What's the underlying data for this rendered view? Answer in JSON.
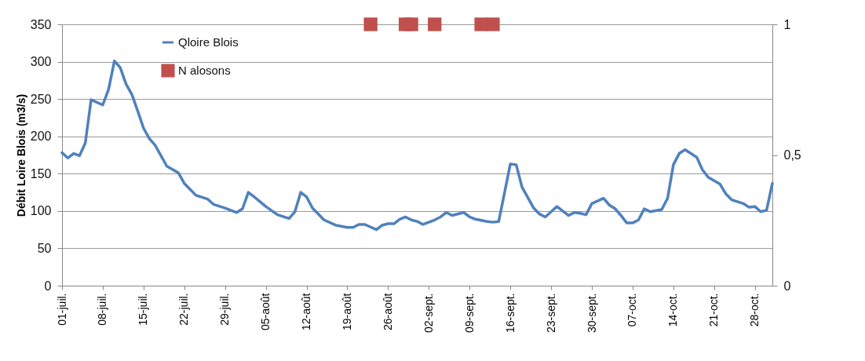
{
  "chart_data": {
    "type": "line",
    "ylabel": "Débit Loire Blois (m3/s)",
    "ylim": [
      0,
      350
    ],
    "yticks": [
      0,
      50,
      100,
      150,
      200,
      250,
      300,
      350
    ],
    "y2lim": [
      0,
      1
    ],
    "y2ticks": [
      0,
      {
        "value": 0.5,
        "label": "0,5"
      },
      1
    ],
    "grid": "y",
    "legend": "top left",
    "line_style": "solid",
    "xlim": [
      "--07-01",
      "--10-31"
    ],
    "xticks": [
      {
        "value": "--07-01",
        "label": "01-juil."
      },
      {
        "value": "--07-08",
        "label": "08-juil."
      },
      {
        "value": "--07-15",
        "label": "15-juil."
      },
      {
        "value": "--07-22",
        "label": "22-juil."
      },
      {
        "value": "--07-29",
        "label": "29-juil."
      },
      {
        "value": "--08-05",
        "label": "05-août"
      },
      {
        "value": "--08-12",
        "label": "12-août"
      },
      {
        "value": "--08-19",
        "label": "19-août"
      },
      {
        "value": "--08-26",
        "label": "26-août"
      },
      {
        "value": "--09-02",
        "label": "02-sept."
      },
      {
        "value": "--09-09",
        "label": "09-sept."
      },
      {
        "value": "--09-16",
        "label": "16-sept."
      },
      {
        "value": "--09-23",
        "label": "23-sept."
      },
      {
        "value": "--09-30",
        "label": "30-sept."
      },
      {
        "value": "--10-07",
        "label": "07-oct."
      },
      {
        "value": "--10-14",
        "label": "14-oct."
      },
      {
        "value": "--10-21",
        "label": "21-oct."
      },
      {
        "value": "--10-28",
        "label": "28-oct."
      }
    ],
    "series": [
      {
        "name": "Qloire Blois",
        "color": "#4f81bd",
        "x": [
          "--07-01",
          "--07-02",
          "--07-03",
          "--07-04",
          "--07-05",
          "--07-06",
          "--07-08",
          "--07-09",
          "--07-10",
          "--07-11",
          "--07-12",
          "--07-13",
          "--07-14",
          "--07-15",
          "--07-16",
          "--07-17",
          "--07-19",
          "--07-21",
          "--07-22",
          "--07-24",
          "--07-26",
          "--07-27",
          "--07-29",
          "--07-31",
          "--08-01",
          "--08-02",
          "--08-03",
          "--08-05",
          "--08-07",
          "--08-09",
          "--08-10",
          "--08-11",
          "--08-12",
          "--08-13",
          "--08-15",
          "--08-17",
          "--08-19",
          "--08-20",
          "--08-21",
          "--08-22",
          "--08-24",
          "--08-25",
          "--08-26",
          "--08-27",
          "--08-28",
          "--08-29",
          "--08-30",
          "--08-31",
          "--09-01",
          "--09-03",
          "--09-04",
          "--09-05",
          "--09-06",
          "--09-08",
          "--09-09",
          "--09-10",
          "--09-12",
          "--09-13",
          "--09-14",
          "--09-16",
          "--09-17",
          "--09-18",
          "--09-20",
          "--09-21",
          "--09-22",
          "--09-23",
          "--09-24",
          "--09-26",
          "--09-27",
          "--09-28",
          "--09-29",
          "--09-30",
          "--10-02",
          "--10-03",
          "--10-04",
          "--10-05",
          "--10-06",
          "--10-07",
          "--10-08",
          "--10-09",
          "--10-10",
          "--10-12",
          "--10-13",
          "--10-14",
          "--10-15",
          "--10-16",
          "--10-17",
          "--10-18",
          "--10-19",
          "--10-20",
          "--10-22",
          "--10-23",
          "--10-24",
          "--10-26",
          "--10-27",
          "--10-28",
          "--10-29",
          "--10-30",
          "--10-31"
        ],
        "values": [
          178,
          171,
          177,
          174,
          191,
          249,
          242,
          263,
          301,
          292,
          270,
          256,
          234,
          211,
          197,
          188,
          160,
          151,
          137,
          121,
          116,
          109,
          104,
          98,
          103,
          125,
          119,
          106,
          95,
          90,
          99,
          125,
          119,
          104,
          88,
          81,
          78,
          78,
          82,
          82,
          75,
          81,
          83,
          83,
          89,
          92,
          88,
          86,
          82,
          88,
          92,
          98,
          94,
          98,
          92,
          89,
          86,
          85,
          86,
          163,
          162,
          132,
          104,
          96,
          92,
          99,
          106,
          94,
          98,
          97,
          95,
          110,
          117,
          108,
          103,
          94,
          84,
          84,
          88,
          103,
          99,
          102,
          117,
          162,
          177,
          182,
          177,
          172,
          155,
          145,
          136,
          123,
          115,
          110,
          105,
          106,
          99,
          101,
          137
        ]
      },
      {
        "name": "N alosons",
        "type": "scatter",
        "marker": "square",
        "axis": "y2",
        "color": "#c0504d",
        "x": [
          "--08-23",
          "--08-29",
          "--08-30",
          "--09-03",
          "--09-11",
          "--09-13"
        ],
        "values": [
          1,
          1,
          1,
          1,
          1,
          1
        ]
      }
    ]
  }
}
